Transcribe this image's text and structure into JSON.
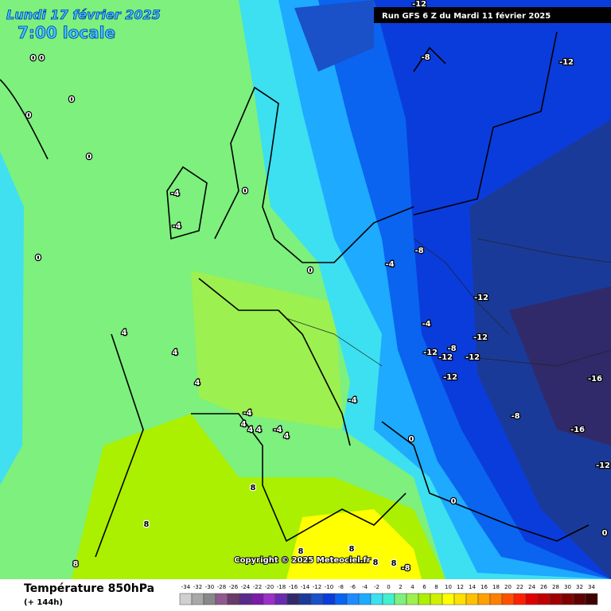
{
  "header": {
    "date": "Lundi 17 février 2025",
    "time": "7:00 locale",
    "run": "Run GFS 6 Z du Mardi 11 février 2025"
  },
  "map": {
    "contour_labels": [
      "-12",
      "0 0",
      "0",
      "0",
      "0",
      "0",
      "-4",
      "-4",
      "0",
      "0",
      "-8",
      "-12",
      "-4",
      "-8",
      "-12",
      "-4",
      "-12",
      "-8",
      "-12",
      "-12",
      "-12",
      "-12",
      "4",
      "4",
      "4",
      "-16",
      "-4",
      "-4",
      "4",
      "4 4",
      "-4",
      "4",
      "0",
      "-8",
      "-16",
      "-12",
      "8",
      "0",
      "8",
      "0",
      "8",
      "8",
      "8",
      "8",
      "8",
      "-8"
    ],
    "copyright": "Copyright © 2025 Meteociel.fr"
  },
  "legend": {
    "title": "Température 850hPa",
    "subtitle": "(+ 144h)",
    "ticks": [
      -34,
      -32,
      -30,
      -28,
      -26,
      -24,
      -22,
      -20,
      -18,
      -16,
      -14,
      -12,
      -10,
      -8,
      -6,
      -4,
      -2,
      0,
      2,
      4,
      6,
      8,
      10,
      12,
      14,
      16,
      18,
      20,
      22,
      24,
      26,
      28,
      30,
      32,
      34
    ],
    "colors": [
      "#d0d0d0",
      "#a8a8a8",
      "#888888",
      "#905890",
      "#6a3a6a",
      "#5a2a8a",
      "#7a1aa8",
      "#9a30c8",
      "#6a2ab0",
      "#302a6a",
      "#1a3a9a",
      "#1a50c8",
      "#0a3cdc",
      "#0a64f0",
      "#1e8cff",
      "#1eaaff",
      "#3ce0f0",
      "#40f0d0",
      "#7df07d",
      "#9cf050",
      "#aaf000",
      "#d0f000",
      "#ffff00",
      "#ffe000",
      "#ffc000",
      "#ffa000",
      "#ff8000",
      "#ff5000",
      "#ff2000",
      "#e00000",
      "#c00000",
      "#a00000",
      "#800000",
      "#600000",
      "#400000"
    ]
  }
}
